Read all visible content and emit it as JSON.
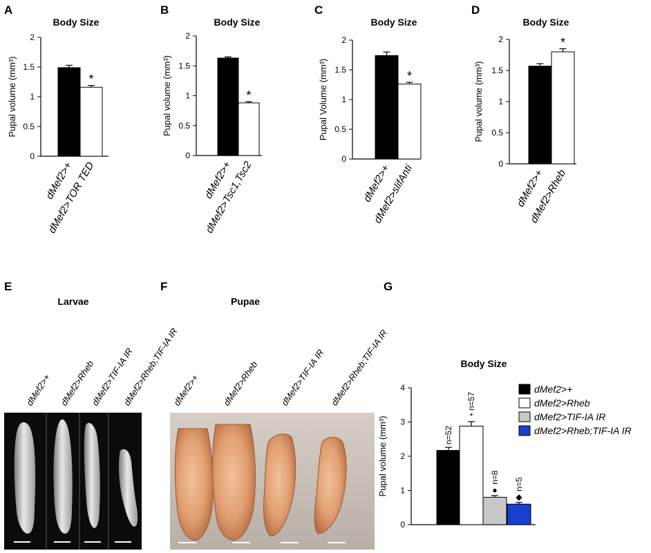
{
  "panel_letters": [
    "A",
    "B",
    "C",
    "D",
    "E",
    "F",
    "G"
  ],
  "chart_data": [
    {
      "type": "bar",
      "panel": "A",
      "title": "Body Size",
      "ylabel": "Pupal volume (mm³)",
      "ylim": [
        0,
        2
      ],
      "yticks": [
        "0",
        "0.5",
        "1",
        "1.5",
        "2"
      ],
      "categories": [
        "dMef2>+",
        "dMef2>TOR TED"
      ],
      "values": [
        1.49,
        1.16
      ],
      "errors": [
        0.04,
        0.03
      ],
      "fills": [
        "#000000",
        "#ffffff"
      ],
      "significance": [
        "",
        "*"
      ],
      "legend": "none",
      "grid": false
    },
    {
      "type": "bar",
      "panel": "B",
      "title": "Body Size",
      "ylabel": "Pupal volume (mm³)",
      "ylim": [
        0,
        2
      ],
      "yticks": [
        "0",
        "0.5",
        "1",
        "1.5",
        "2"
      ],
      "categories": [
        "dMef2>+",
        "dMef2>Tsc1,Tsc2"
      ],
      "values": [
        1.63,
        0.88
      ],
      "errors": [
        0.02,
        0.02
      ],
      "fills": [
        "#000000",
        "#ffffff"
      ],
      "significance": [
        "",
        "*"
      ],
      "legend": "none",
      "grid": false
    },
    {
      "type": "bar",
      "panel": "C",
      "title": "Body Size",
      "ylabel": "Pupal Volume (mm³)",
      "ylim": [
        0,
        2
      ],
      "yticks": [
        "0",
        "0.5",
        "1",
        "1.5",
        "2"
      ],
      "categories": [
        "dMef2>+",
        "dMef2>slifAnti"
      ],
      "values": [
        1.74,
        1.26
      ],
      "errors": [
        0.06,
        0.03
      ],
      "fills": [
        "#000000",
        "#ffffff"
      ],
      "significance": [
        "",
        "*"
      ],
      "legend": "none",
      "grid": false
    },
    {
      "type": "bar",
      "panel": "D",
      "title": "Body Size",
      "ylabel": "Pupal volume (mm³)",
      "ylim": [
        0,
        2
      ],
      "yticks": [
        "0",
        "0.5",
        "1",
        "1.5",
        "2"
      ],
      "categories": [
        "dMef2>+",
        "dMef2>Rheb"
      ],
      "values": [
        1.57,
        1.8
      ],
      "errors": [
        0.04,
        0.05
      ],
      "fills": [
        "#000000",
        "#ffffff"
      ],
      "significance": [
        "",
        "*"
      ],
      "legend": "none",
      "grid": false
    },
    {
      "type": "bar",
      "panel": "G",
      "title": "Body Size",
      "ylabel": "Pupal volume (mm³)",
      "ylim": [
        0,
        4
      ],
      "yticks": [
        "0",
        "1",
        "2",
        "3",
        "4"
      ],
      "categories": [
        "dMef2>+",
        "dMef2>Rheb",
        "dMef2>TIF-IA IR",
        "dMef2>Rheb;TIF-IA IR"
      ],
      "values": [
        2.17,
        2.88,
        0.8,
        0.6
      ],
      "errors": [
        0.09,
        0.13,
        0.05,
        0.05
      ],
      "fills": [
        "#000000",
        "#ffffff",
        "#c8c8c8",
        "#1a3fcf"
      ],
      "n_labels": [
        "n=52",
        "n=57",
        "n=8",
        "n=5"
      ],
      "markers": [
        "",
        "*",
        "●",
        "◆"
      ],
      "legend": "right",
      "grid": false
    }
  ],
  "panel_E": {
    "title": "Larvae",
    "labels": [
      "dMef2>+",
      "dMef2>Rheb",
      "dMef2>TIF-IA IR",
      "dMef2>Rheb;TIF-IA IR"
    ]
  },
  "panel_F": {
    "title": "Pupae",
    "labels": [
      "dMef2>+",
      "dMef2>Rheb",
      "dMef2>TIF-IA IR",
      "dMef2>Rheb;TIF-IA IR"
    ]
  }
}
